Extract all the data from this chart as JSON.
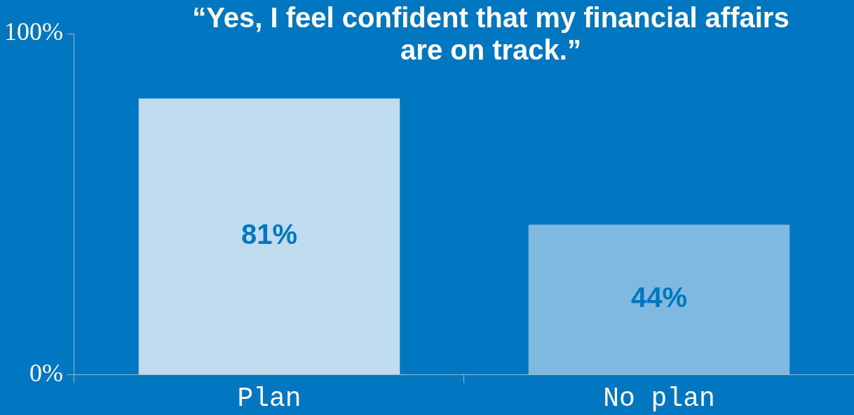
{
  "chart_data": {
    "type": "bar",
    "title": "“Yes, I feel confident that my financial affairs are on track.”",
    "categories": [
      "Plan",
      "No plan"
    ],
    "values": [
      81,
      44
    ],
    "colors": [
      "#bfdcef",
      "#80b9e0"
    ],
    "value_labels": [
      "81%",
      "44%"
    ],
    "ylim": [
      0,
      100
    ],
    "yticks": [
      {
        "value": 0,
        "label": "0%"
      },
      {
        "value": 100,
        "label": "100%"
      }
    ]
  }
}
